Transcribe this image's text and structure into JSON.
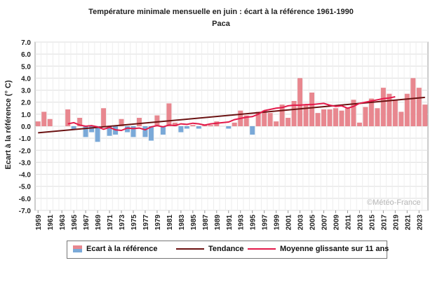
{
  "chart_data": {
    "type": "bar",
    "title": "Température minimale mensuelle en juin : écart à la référence 1961-1990",
    "subtitle": "Paca",
    "xlabel": "",
    "ylabel": "Ecart à la référence (° C)",
    "ylim": [
      -7,
      7
    ],
    "yticks": [
      "7.0",
      "6.0",
      "5.0",
      "4.0",
      "3.0",
      "2.0",
      "1.0",
      "0.0",
      "-1.0",
      "-2.0",
      "-3.0",
      "-4.0",
      "-5.0",
      "-6.0",
      "-7.0"
    ],
    "xticks": [
      "1959",
      "1961",
      "1963",
      "1965",
      "1967",
      "1969",
      "1971",
      "1973",
      "1975",
      "1977",
      "1979",
      "1981",
      "1983",
      "1985",
      "1987",
      "1989",
      "1991",
      "1993",
      "1995",
      "1997",
      "1999",
      "2001",
      "2003",
      "2005",
      "2007",
      "2009",
      "2011",
      "2013",
      "2015",
      "2017",
      "2019",
      "2021",
      "2023"
    ],
    "grid": true,
    "legend_position": "bottom",
    "colors": {
      "positive": "#e8878f",
      "negative": "#7aa9d8",
      "trend": "#6b1212",
      "moving_average": "#e31a4a",
      "grid": "#dddddd"
    },
    "series": [
      {
        "name": "Ecart à la référence",
        "kind": "bar",
        "x": [
          1959,
          1960,
          1961,
          1962,
          1963,
          1964,
          1965,
          1966,
          1967,
          1968,
          1969,
          1970,
          1971,
          1972,
          1973,
          1974,
          1975,
          1976,
          1977,
          1978,
          1979,
          1980,
          1981,
          1982,
          1983,
          1984,
          1985,
          1986,
          1987,
          1988,
          1989,
          1990,
          1991,
          1992,
          1993,
          1994,
          1995,
          1996,
          1997,
          1998,
          1999,
          2000,
          2001,
          2002,
          2003,
          2004,
          2005,
          2006,
          2007,
          2008,
          2009,
          2010,
          2011,
          2012,
          2013,
          2014,
          2015,
          2016,
          2017,
          2018,
          2019,
          2020,
          2021,
          2022,
          2023,
          2024
        ],
        "values": [
          0.4,
          1.2,
          0.6,
          0.0,
          0.0,
          1.4,
          -0.3,
          0.7,
          -0.9,
          -0.5,
          -1.3,
          1.5,
          -0.8,
          -0.7,
          0.6,
          -0.5,
          -0.9,
          0.7,
          -0.9,
          -1.2,
          0.9,
          -0.7,
          1.9,
          0.3,
          -0.5,
          -0.2,
          0.1,
          -0.2,
          0.1,
          0.1,
          0.4,
          0.0,
          -0.2,
          0.3,
          1.3,
          0.9,
          -0.7,
          1.2,
          1.3,
          1.1,
          0.4,
          1.8,
          0.7,
          2.1,
          4.0,
          1.8,
          2.8,
          1.1,
          1.4,
          1.4,
          1.5,
          1.3,
          1.5,
          2.2,
          0.3,
          1.6,
          2.3,
          1.5,
          3.2,
          2.7,
          2.2,
          1.2,
          2.7,
          4.0,
          3.2,
          1.8
        ]
      },
      {
        "name": "Tendance",
        "kind": "line",
        "x": [
          1959,
          2024
        ],
        "values": [
          -0.55,
          2.4
        ]
      },
      {
        "name": "Moyenne glissante sur 11 ans",
        "kind": "line",
        "x": [
          1964,
          1965,
          1966,
          1967,
          1968,
          1969,
          1970,
          1971,
          1972,
          1973,
          1974,
          1975,
          1976,
          1977,
          1978,
          1979,
          1980,
          1981,
          1982,
          1983,
          1984,
          1985,
          1986,
          1987,
          1988,
          1989,
          1990,
          1991,
          1992,
          1993,
          1994,
          1995,
          1996,
          1997,
          1998,
          1999,
          2000,
          2001,
          2002,
          2003,
          2004,
          2005,
          2006,
          2007,
          2008,
          2009,
          2010,
          2011,
          2012,
          2013,
          2014,
          2015,
          2016,
          2017,
          2018,
          2019
        ],
        "values": [
          0.2,
          0.3,
          0.1,
          0.0,
          0.05,
          -0.05,
          -0.25,
          -0.1,
          -0.3,
          -0.35,
          -0.15,
          -0.2,
          -0.15,
          -0.3,
          -0.05,
          0.05,
          -0.05,
          0.1,
          0.05,
          0.2,
          0.15,
          0.25,
          0.2,
          0.1,
          0.2,
          0.25,
          0.3,
          0.35,
          0.55,
          0.65,
          0.75,
          0.8,
          1.0,
          1.3,
          1.4,
          1.5,
          1.55,
          1.7,
          1.75,
          1.75,
          1.8,
          1.8,
          1.85,
          1.9,
          1.75,
          1.65,
          1.7,
          1.5,
          1.65,
          1.9,
          2.0,
          2.1,
          2.2,
          2.3,
          2.35,
          2.45
        ]
      }
    ],
    "legend": [
      "Ecart à la référence",
      "Tendance",
      "Moyenne glissante sur 11 ans"
    ],
    "source": "©Météo-France"
  }
}
